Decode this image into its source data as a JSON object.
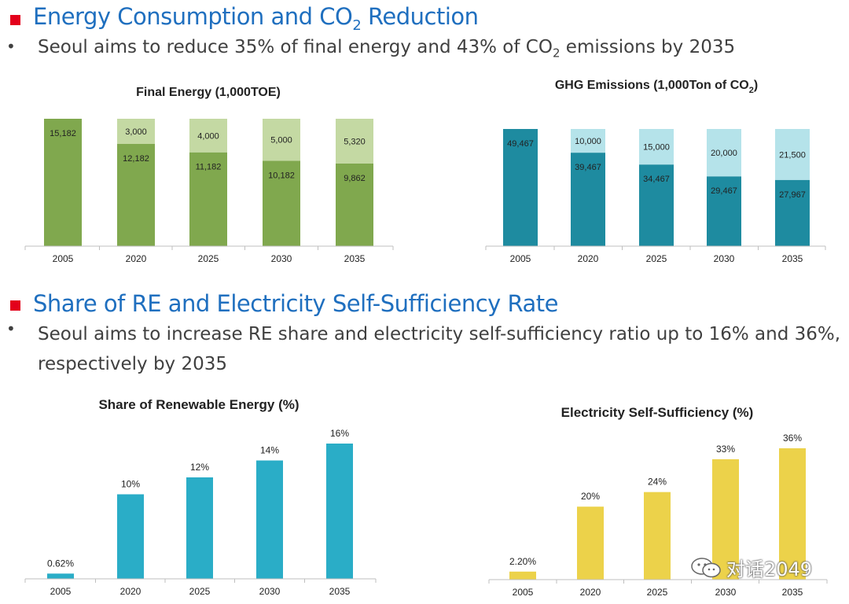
{
  "section1": {
    "heading_pre": "Energy Consumption  and CO",
    "heading_sub": "2",
    "heading_post": " Reduction",
    "bullet": "•",
    "text_pre": "Seoul aims to reduce 35% of final energy and 43% of CO",
    "text_sub": "2",
    "text_post": " emissions by 2035"
  },
  "section2": {
    "heading": "Share of RE and Electricity Self-Sufficiency Rate",
    "bullet": "•",
    "text": "Seoul aims to increase RE share  and electricity self-sufficiency ratio up to 16%  and 36%, respectively by 2035"
  },
  "watermark": "对话2049",
  "colors": {
    "heading": "#1f6fbf",
    "accent_square": "#e3001b",
    "energy_dark": "#80a84e",
    "energy_light": "#c4d9a3",
    "ghg_dark": "#1e8ba0",
    "ghg_light": "#b5e3ea",
    "re": "#2aadc7",
    "elec": "#ecd24a"
  },
  "chart_data": [
    {
      "id": "final-energy",
      "type": "bar",
      "stacked": true,
      "title": "Final Energy (1,000TOE)",
      "categories": [
        "2005",
        "2020",
        "2025",
        "2030",
        "2035"
      ],
      "series": [
        {
          "values": [
            15182,
            12182,
            11182,
            10182,
            9862
          ],
          "labels": [
            "15,182",
            "12,182",
            "11,182",
            "10,182",
            "9,862"
          ],
          "color": "#80a84e"
        },
        {
          "values": [
            0,
            3000,
            4000,
            5000,
            5320
          ],
          "labels": [
            "",
            "3,000",
            "4,000",
            "5,000",
            "5,320"
          ],
          "color": "#c4d9a3"
        }
      ],
      "ylim": [
        0,
        15182
      ]
    },
    {
      "id": "ghg-emissions",
      "type": "bar",
      "stacked": true,
      "title_pre": "GHG Emissions (1,000Ton of CO",
      "title_sub": "2",
      "title_post": ")",
      "categories": [
        "2005",
        "2020",
        "2025",
        "2030",
        "2035"
      ],
      "series": [
        {
          "values": [
            49467,
            39467,
            34467,
            29467,
            27967
          ],
          "labels": [
            "49,467",
            "39,467",
            "34,467",
            "29,467",
            "27,967"
          ],
          "color": "#1e8ba0"
        },
        {
          "values": [
            0,
            10000,
            15000,
            20000,
            21500
          ],
          "labels": [
            "",
            "10,000",
            "15,000",
            "20,000",
            "21,500"
          ],
          "color": "#b5e3ea"
        }
      ],
      "ylim": [
        0,
        49467
      ]
    },
    {
      "id": "renewable-share",
      "type": "bar",
      "title": "Share of Renewable Energy (%)",
      "categories": [
        "2005",
        "2020",
        "2025",
        "2030",
        "2035"
      ],
      "values": [
        0.62,
        10,
        12,
        14,
        16
      ],
      "labels": [
        "0.62%",
        "10%",
        "12%",
        "14%",
        "16%"
      ],
      "color": "#2aadc7",
      "ylim": [
        0,
        16
      ]
    },
    {
      "id": "electricity-self-sufficiency",
      "type": "bar",
      "title": "Electricity Self-Sufficiency (%)",
      "categories": [
        "2005",
        "2020",
        "2025",
        "2030",
        "2035"
      ],
      "values": [
        2.2,
        20,
        24,
        33,
        36
      ],
      "labels": [
        "2.20%",
        "20%",
        "24%",
        "33%",
        "36%"
      ],
      "color": "#ecd24a",
      "ylim": [
        0,
        36
      ]
    }
  ]
}
